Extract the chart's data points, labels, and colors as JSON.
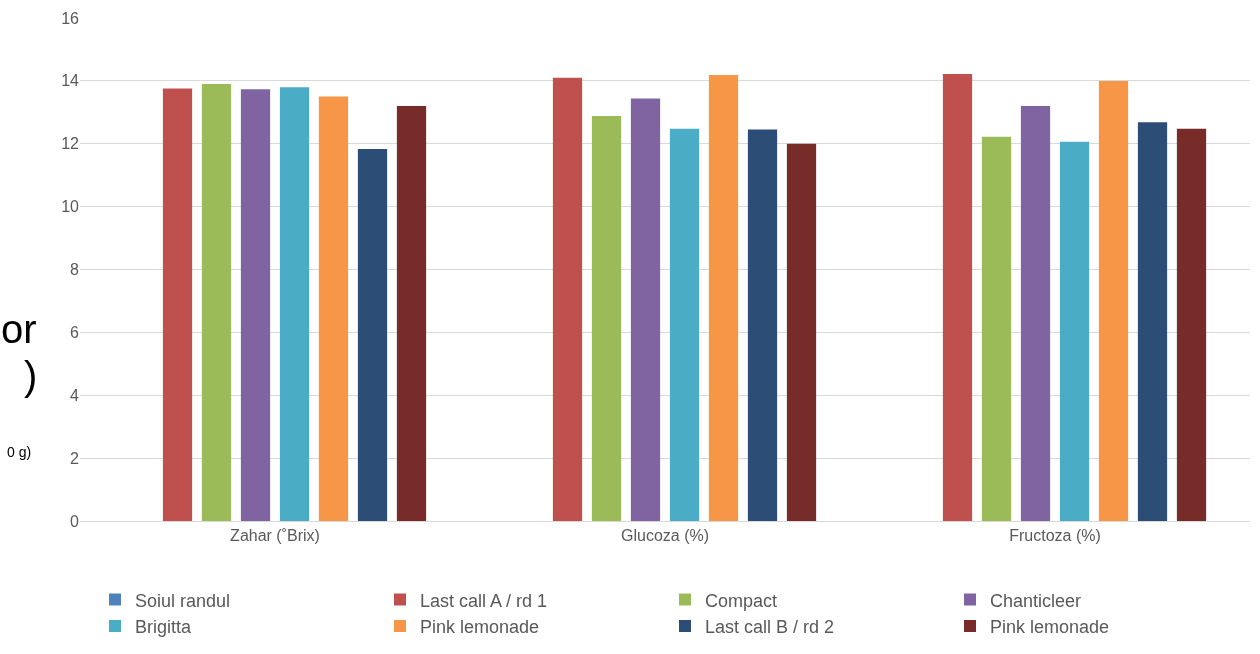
{
  "chart_data": {
    "type": "bar",
    "categories": [
      "Zahar (˚Brix)",
      "Glucoza (%)",
      "Fructoza (%)"
    ],
    "series": [
      {
        "name": "Soiul randul",
        "color": "#4f81bd",
        "values": [
          null,
          null,
          null
        ]
      },
      {
        "name": "Last call A / rd 1",
        "color": "#c0504d",
        "values": [
          13.76,
          14.1,
          14.22
        ]
      },
      {
        "name": "Compact",
        "color": "#9bbb59",
        "values": [
          13.9,
          12.88,
          12.22
        ]
      },
      {
        "name": "Chanticleer",
        "color": "#8064a2",
        "values": [
          13.73,
          13.44,
          13.2
        ]
      },
      {
        "name": "Brigitta",
        "color": "#4bacc6",
        "values": [
          13.8,
          12.48,
          12.06
        ]
      },
      {
        "name": "Pink lemonade",
        "color": "#f79646",
        "values": [
          13.5,
          14.19,
          14.0
        ]
      },
      {
        "name": "Last call B / rd 2",
        "color": "#2c4d75",
        "values": [
          11.83,
          12.45,
          12.68
        ]
      },
      {
        "name": "Pink lemonade",
        "color": "#772c2a",
        "values": [
          13.2,
          12.0,
          12.48
        ]
      }
    ],
    "ylim": [
      0,
      16
    ],
    "yticks": [
      0,
      2,
      4,
      6,
      8,
      10,
      12,
      14,
      16
    ],
    "grid": "y",
    "legend": "bottom",
    "annotations": [
      "or",
      ")",
      "0 g)"
    ]
  }
}
